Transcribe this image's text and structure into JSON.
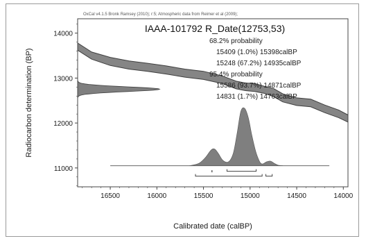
{
  "chart_data": {
    "type": "area",
    "source_note": "OxCal v4.1.5 Bronk Ramsey (2010); r:5; Atmospheric data from Reimer et al (2009);",
    "title": "IAAA-101792 R_Date(12753,53)",
    "xlabel": "Calibrated date (calBP)",
    "ylabel": "Radiocarbon determination (BP)",
    "x_reversed": true,
    "xlim": [
      16850,
      13950
    ],
    "ylim": [
      10580,
      14320
    ],
    "x_ticks": [
      16500,
      16000,
      15500,
      15000,
      14500,
      14000
    ],
    "y_ticks": [
      11000,
      12000,
      13000,
      14000
    ],
    "legend_lines": [
      "68.2% probability",
      "15409 (1.0%) 15398calBP",
      "15248 (67.2%) 14935calBP",
      "95.4% probability",
      "15586 (93.7%) 14871calBP",
      "14831 (1.7%) 14763calBP"
    ],
    "calibration_curve": {
      "x": [
        16850,
        16700,
        16500,
        16300,
        16100,
        15900,
        15700,
        15500,
        15300,
        15150,
        15050,
        14950,
        14850,
        14750,
        14650,
        14500,
        14350,
        14200,
        14050,
        13950
      ],
      "upper": [
        13780,
        13580,
        13460,
        13380,
        13330,
        13270,
        13200,
        13150,
        13050,
        12930,
        12890,
        12880,
        12820,
        12770,
        12650,
        12560,
        12530,
        12400,
        12290,
        12180
      ],
      "lower": [
        13620,
        13420,
        13280,
        13200,
        13150,
        13090,
        13020,
        12970,
        12880,
        12760,
        12720,
        12700,
        12660,
        12590,
        12470,
        12390,
        12360,
        12230,
        12120,
        12020
      ]
    },
    "radiocarbon_distribution": {
      "mean": 12753,
      "sigma": 53,
      "x_start": 16850,
      "peak_x": 15970
    },
    "calibrated_distribution": {
      "x": [
        15650,
        15550,
        15480,
        15420,
        15380,
        15340,
        15290,
        15230,
        15180,
        15140,
        15100,
        15060,
        15020,
        14980,
        14940,
        14900,
        14870,
        14820,
        14780,
        14740,
        14700,
        14650
      ],
      "prob": [
        0,
        0.04,
        0.14,
        0.27,
        0.29,
        0.21,
        0.09,
        0.07,
        0.22,
        0.56,
        0.94,
        1.0,
        0.84,
        0.52,
        0.25,
        0.08,
        0.03,
        0.07,
        0.08,
        0.04,
        0.01,
        0
      ]
    },
    "baseline_range": [
      16500,
      14150
    ],
    "range_68": [
      [
        15409,
        15398
      ],
      [
        15248,
        14935
      ]
    ],
    "range_95": [
      [
        15586,
        14871
      ],
      [
        14831,
        14763
      ]
    ],
    "colors": {
      "curve_fill": "#858585",
      "curve_line": "#3e3e3e",
      "distribution_fill": "#7f7f7f",
      "axis": "#444444",
      "text": "#1a1a1a"
    }
  }
}
